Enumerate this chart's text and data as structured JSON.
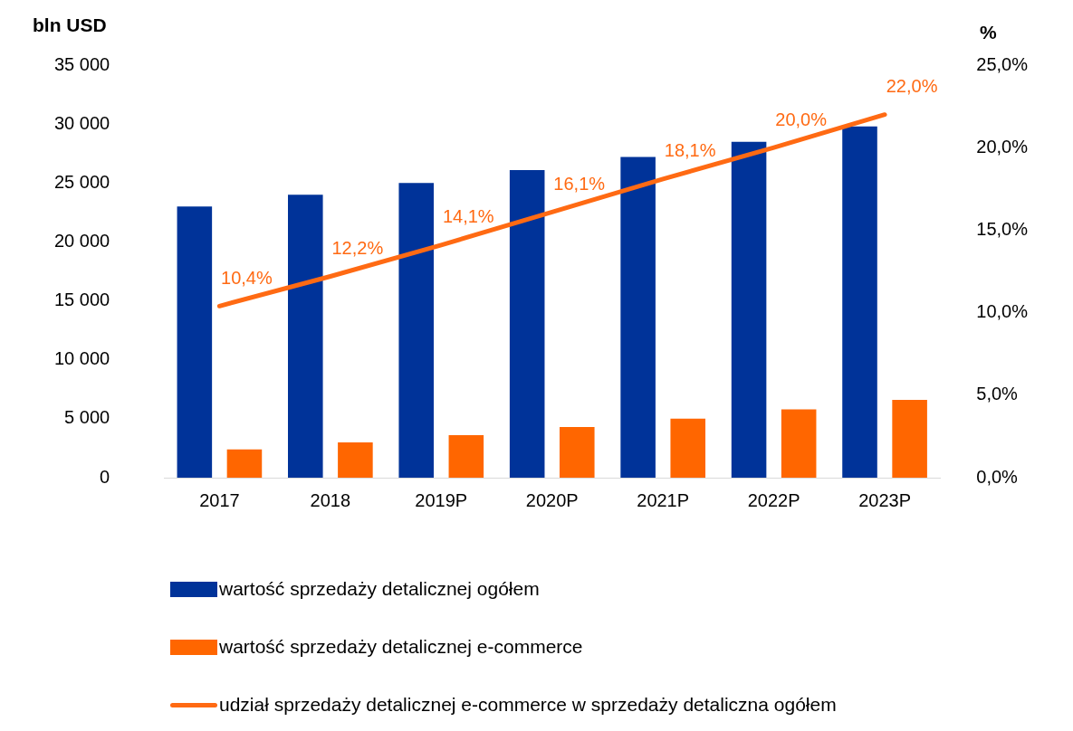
{
  "chart_data": {
    "type": "bar",
    "ylabel": "bln USD",
    "y2label": "%",
    "categories": [
      "2017",
      "2018",
      "2019P",
      "2020P",
      "2021P",
      "2022P",
      "2023P"
    ],
    "series": [
      {
        "name": "wartość sprzedaży detalicznej ogółem",
        "color": "#003399",
        "values": [
          23000,
          24000,
          25000,
          26100,
          27200,
          28500,
          29800
        ]
      },
      {
        "name": "wartość sprzedaży detalicznej e-commerce",
        "color": "#ff6600",
        "values": [
          2400,
          3000,
          3600,
          4300,
          5000,
          5800,
          6600
        ]
      },
      {
        "name": "udział sprzedaży detalicznej e-commerce w sprzedaży detaliczna ogółem",
        "type": "line",
        "axis": "y2",
        "color": "#ff6a13",
        "marker": "none",
        "values": [
          10.4,
          12.2,
          14.1,
          16.1,
          18.1,
          20.0,
          22.0
        ],
        "value_labels": [
          "10,4%",
          "12,2%",
          "14,1%",
          "16,1%",
          "18,1%",
          "20,0%",
          "22,0%"
        ]
      }
    ],
    "ylim": [
      0,
      35000
    ],
    "yticks": [
      {
        "value": 0,
        "label": "0"
      },
      {
        "value": 5000,
        "label": "5 000"
      },
      {
        "value": 10000,
        "label": "10 000"
      },
      {
        "value": 15000,
        "label": "15 000"
      },
      {
        "value": 20000,
        "label": "20 000"
      },
      {
        "value": 25000,
        "label": "25 000"
      },
      {
        "value": 30000,
        "label": "30 000"
      },
      {
        "value": 35000,
        "label": "35 000"
      }
    ],
    "y2lim": [
      0,
      25
    ],
    "y2ticks": [
      {
        "value": 0,
        "label": "0,0%"
      },
      {
        "value": 5,
        "label": "5,0%"
      },
      {
        "value": 10,
        "label": "10,0%"
      },
      {
        "value": 15,
        "label": "15,0%"
      },
      {
        "value": 20,
        "label": "20,0%"
      },
      {
        "value": 25,
        "label": "25,0%"
      }
    ],
    "grid": false,
    "legend": "bottom"
  }
}
